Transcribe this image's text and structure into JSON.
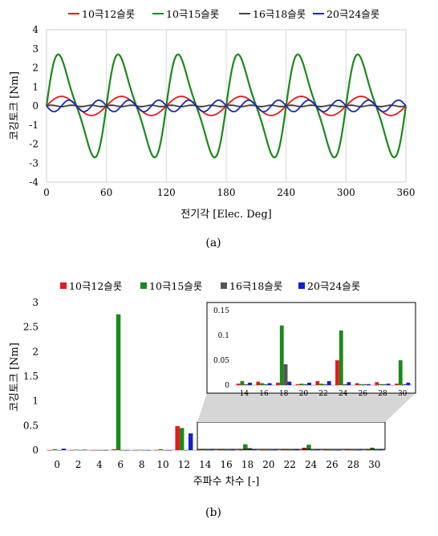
{
  "chart_data": [
    {
      "id": "a",
      "type": "line",
      "caption": "(a)",
      "xlabel": "전기각 [Elec. Deg]",
      "ylabel": "코깅토크 [Nm]",
      "xlim": [
        0,
        360
      ],
      "ylim": [
        -4,
        4
      ],
      "xticks": [
        0,
        60,
        120,
        180,
        240,
        300,
        360
      ],
      "yticks": [
        4,
        3,
        2,
        1,
        0,
        -1,
        -2,
        -3,
        -4
      ],
      "grid": "vertical",
      "legend": "top",
      "series": [
        {
          "name": "10극12슬롯",
          "color": "#e8181c",
          "amplitude": 0.5,
          "cycles": 6,
          "phase_deg": 0
        },
        {
          "name": "10극15슬롯",
          "color": "#1a8a1a",
          "amplitude": 2.7,
          "cycles": 6,
          "phase_deg": 0
        },
        {
          "name": "16극18슬롯",
          "color": "#444444",
          "amplitude": 0.04,
          "cycles": 18,
          "phase_deg": 0
        },
        {
          "name": "20극24슬롯",
          "color": "#1a2ab4",
          "amplitude": 0.3,
          "cycles": 12,
          "phase_deg": 180
        }
      ]
    },
    {
      "id": "b",
      "type": "bar",
      "caption": "(b)",
      "xlabel": "주파수 차수 [-]",
      "ylabel": "코깅토크 [Nm]",
      "ylim": [
        0,
        3
      ],
      "yticks": [
        "3",
        "2.5",
        "2",
        "1.5",
        "1",
        "0.5",
        "0"
      ],
      "legend": "top",
      "categories": [
        0,
        2,
        4,
        6,
        8,
        10,
        12,
        14,
        16,
        18,
        20,
        22,
        24,
        26,
        28,
        30
      ],
      "series": [
        {
          "name": "10극12슬롯",
          "color": "#e8181c",
          "values": [
            0.003,
            0.002,
            0.002,
            0.02,
            0.002,
            0.003,
            0.49,
            0.003,
            0.007,
            0.005,
            0.002,
            0.008,
            0.05,
            0.004,
            0.006,
            0.003
          ]
        },
        {
          "name": "10극15슬롯",
          "color": "#1a8a1a",
          "values": [
            0.02,
            0.01,
            0.003,
            2.76,
            0.005,
            0.02,
            0.45,
            0.008,
            0.004,
            0.12,
            0.003,
            0.003,
            0.11,
            0.002,
            0.002,
            0.05
          ]
        },
        {
          "name": "16극18슬롯",
          "color": "#555555",
          "values": [
            0.002,
            0.002,
            0.002,
            0.002,
            0.002,
            0.002,
            0.002,
            0.002,
            0.002,
            0.042,
            0.002,
            0.002,
            0.002,
            0.002,
            0.002,
            0.002
          ]
        },
        {
          "name": "20극24슬롯",
          "color": "#1420c8",
          "values": [
            0.03,
            0.01,
            0.002,
            0.002,
            0.002,
            0.002,
            0.34,
            0.005,
            0.004,
            0.007,
            0.005,
            0.008,
            0.006,
            0.002,
            0.003,
            0.005
          ]
        }
      ],
      "inset": {
        "categories": [
          14,
          16,
          18,
          20,
          22,
          24,
          26,
          28,
          30
        ],
        "ylim": [
          0,
          0.15
        ],
        "yticks": [
          "0.15",
          "0.1",
          "0.05",
          "0"
        ]
      }
    }
  ]
}
